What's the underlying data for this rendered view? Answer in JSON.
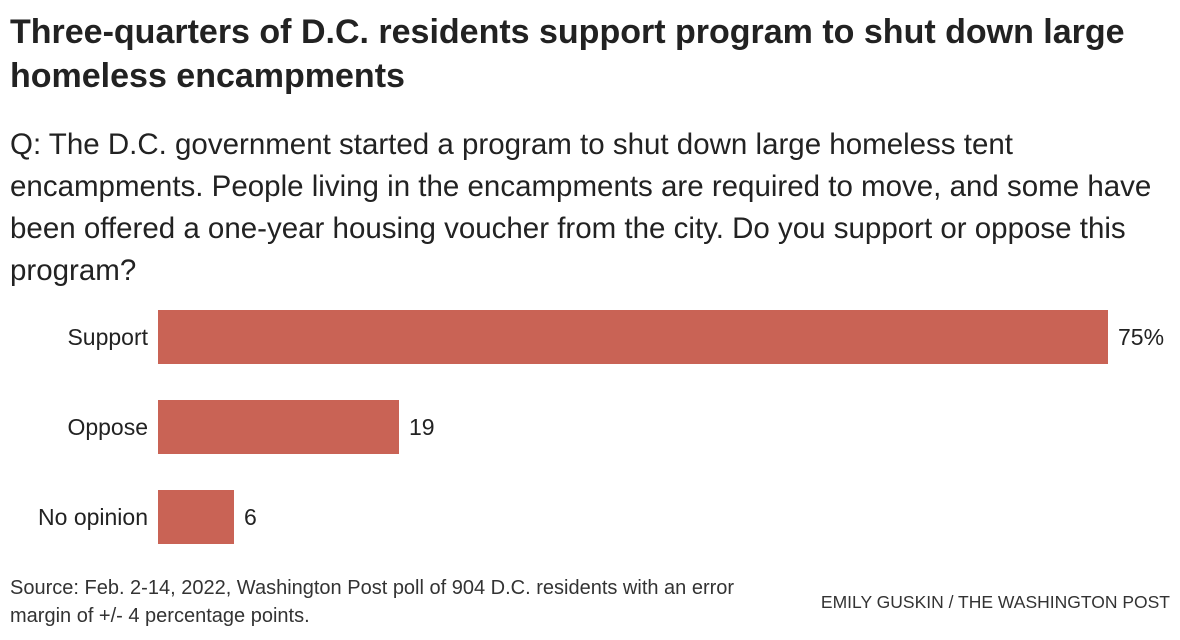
{
  "header": {
    "title": "Three-quarters of D.C. residents support program to shut down large homeless encampments",
    "question": "Q: The D.C. government started a program to shut down large homeless tent encampments. People living in the encampments are required to move, and some have been offered a one-year housing voucher from the city. Do you support or oppose this program?"
  },
  "footer": {
    "source": "Source: Feb. 2-14, 2022, Washington Post poll of 904 D.C. residents with an error margin of +/- 4 percentage points.",
    "credit": "EMILY GUSKIN / THE WASHINGTON POST"
  },
  "chart_data": {
    "type": "bar",
    "orientation": "horizontal",
    "categories": [
      "Support",
      "Oppose",
      "No opinion"
    ],
    "values": [
      75,
      19,
      6
    ],
    "value_labels": [
      "75%",
      "19",
      "6"
    ],
    "xlim": [
      0,
      75
    ],
    "grid": false,
    "bar_color": "#c96355"
  }
}
